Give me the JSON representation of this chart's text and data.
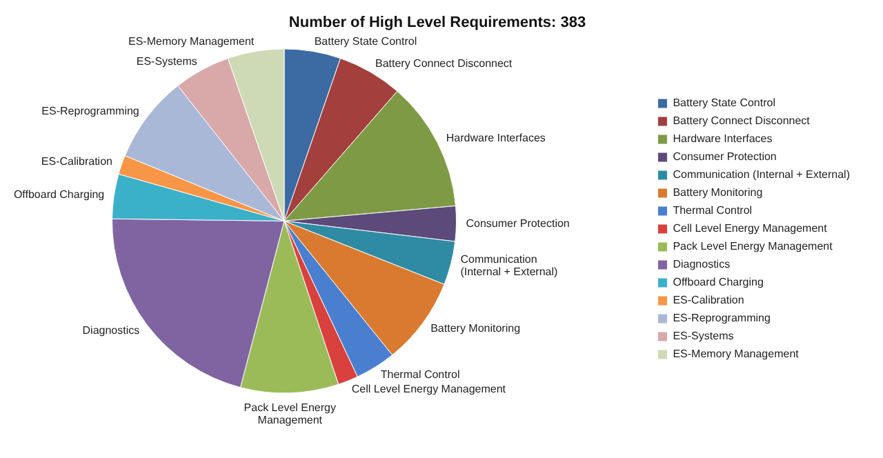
{
  "chart_data": {
    "type": "pie",
    "title": "Number of High Level Requirements: 383",
    "categories": [
      "Battery State Control",
      "Battery Connect Disconnect",
      "Hardware Interfaces",
      "Consumer Protection",
      "Communication (Internal + External)",
      "Battery Monitoring",
      "Thermal Control",
      "Cell Level Energy Management",
      "Pack Level Energy Management",
      "Diagnostics",
      "Offboard Charging",
      "ES-Calibration",
      "ES-Reprogramming",
      "ES-Systems",
      "ES-Memory Management"
    ],
    "values": [
      5.3,
      6.1,
      12.2,
      3.3,
      4.1,
      8.2,
      3.8,
      1.9,
      9.2,
      21.1,
      4.2,
      1.8,
      8.2,
      5.3,
      5.3
    ],
    "colors": [
      "#3c6aa3",
      "#a33f3c",
      "#7f9a45",
      "#5c4a7a",
      "#2f8ba3",
      "#d97a30",
      "#4a7fd0",
      "#d8413d",
      "#9bbb59",
      "#8064a2",
      "#3bb0c9",
      "#f79646",
      "#aab8d8",
      "#d9a8a8",
      "#cddab5"
    ],
    "legend": "right"
  }
}
